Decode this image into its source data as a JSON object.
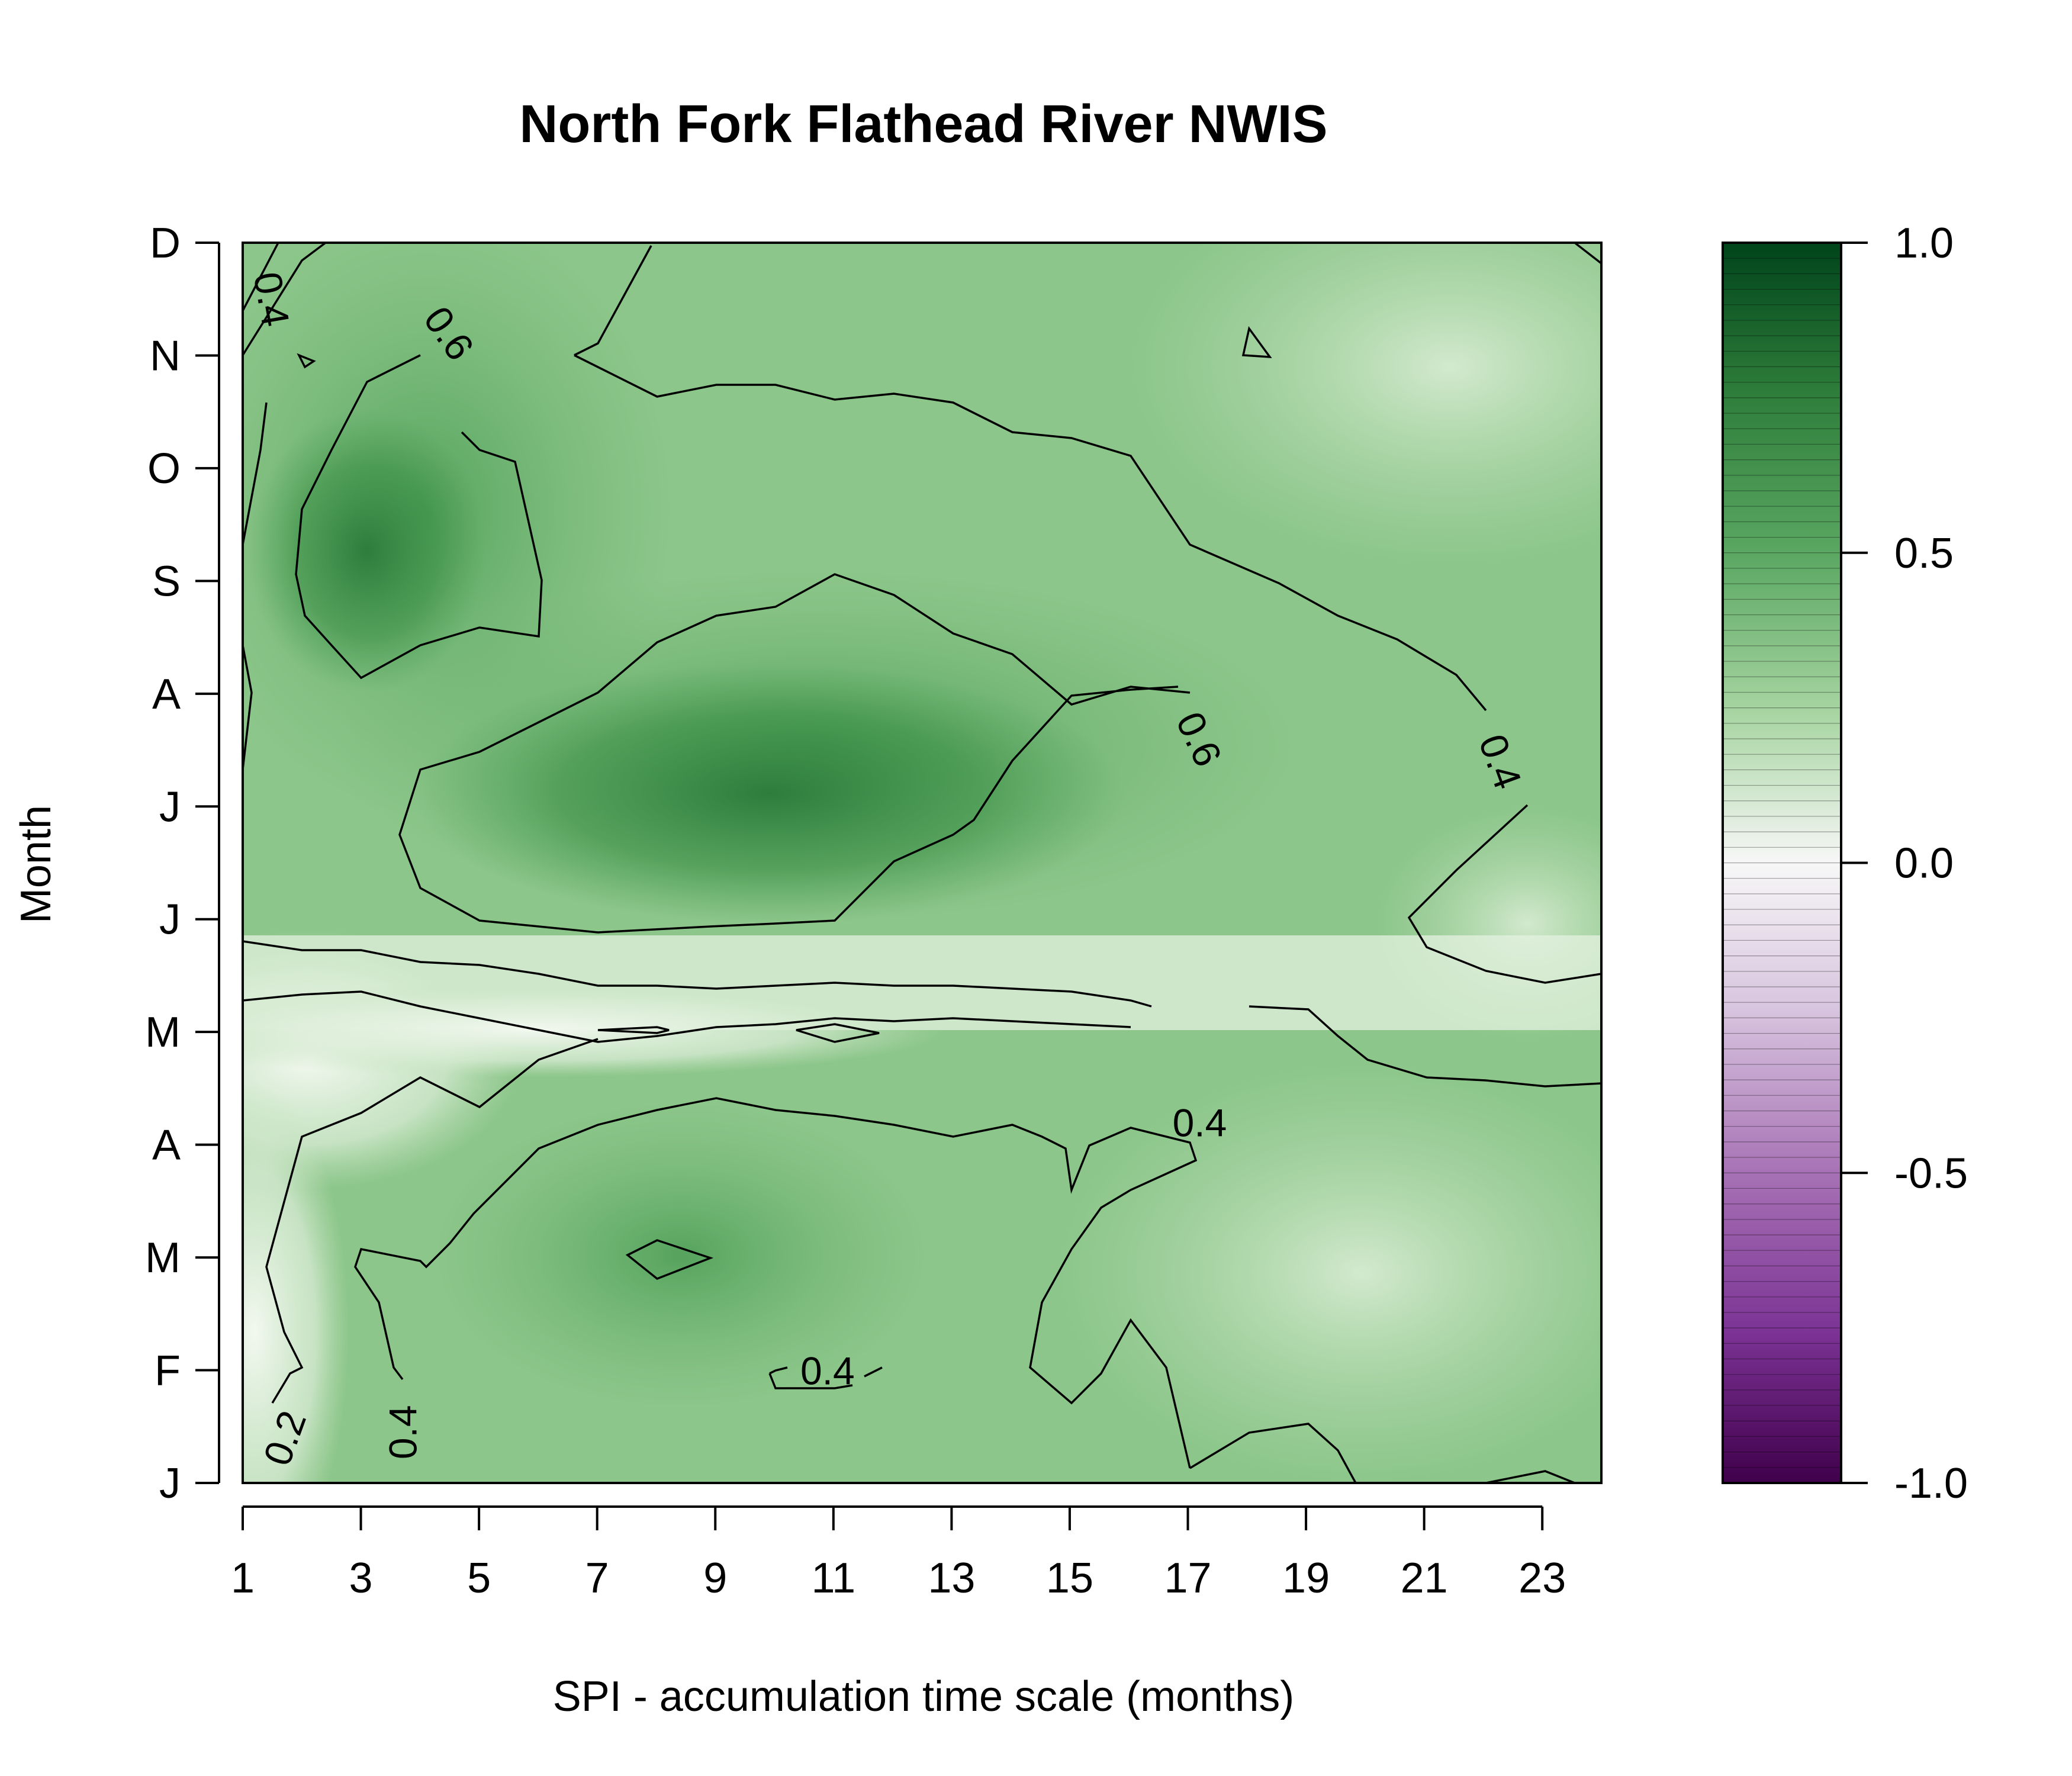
{
  "chart_data": {
    "type": "heatmap",
    "title": "North Fork Flathead River NWIS",
    "xlabel": "SPI - accumulation time scale (months)",
    "ylabel": "Month",
    "x_ticks": [
      "1",
      "3",
      "5",
      "7",
      "9",
      "11",
      "13",
      "15",
      "17",
      "19",
      "21",
      "23"
    ],
    "y_ticks": [
      "J",
      "F",
      "M",
      "A",
      "M",
      "J",
      "J",
      "A",
      "S",
      "O",
      "N",
      "D"
    ],
    "xlim": [
      1,
      24
    ],
    "ylim": [
      1,
      12
    ],
    "colorbar": {
      "ticks": [
        "1.0",
        "0.5",
        "0.0",
        "-0.5",
        "-1.0"
      ],
      "range": [
        -1,
        1
      ],
      "low_color": "#40004b",
      "mid_color": "#f7f7f7",
      "high_color": "#00441b"
    },
    "contour_labels": [
      {
        "text": "0.4",
        "x": 1.5,
        "y": 11.5,
        "angle": 80
      },
      {
        "text": "0.6",
        "x": 4.5,
        "y": 11.2,
        "angle": 55
      },
      {
        "text": "0.6",
        "x": 17.2,
        "y": 7.6,
        "angle": 65
      },
      {
        "text": "0.4",
        "x": 22.3,
        "y": 7.4,
        "angle": 70
      },
      {
        "text": "0.4",
        "x": 17.2,
        "y": 4.2,
        "angle": 0
      },
      {
        "text": "0.4",
        "x": 10.9,
        "y": 2.0,
        "angle": 0
      },
      {
        "text": "0.2",
        "x": 1.7,
        "y": 1.4,
        "angle": -70
      },
      {
        "text": "0.4",
        "x": 3.7,
        "y": 1.45,
        "angle": -90
      }
    ],
    "grid": false
  }
}
